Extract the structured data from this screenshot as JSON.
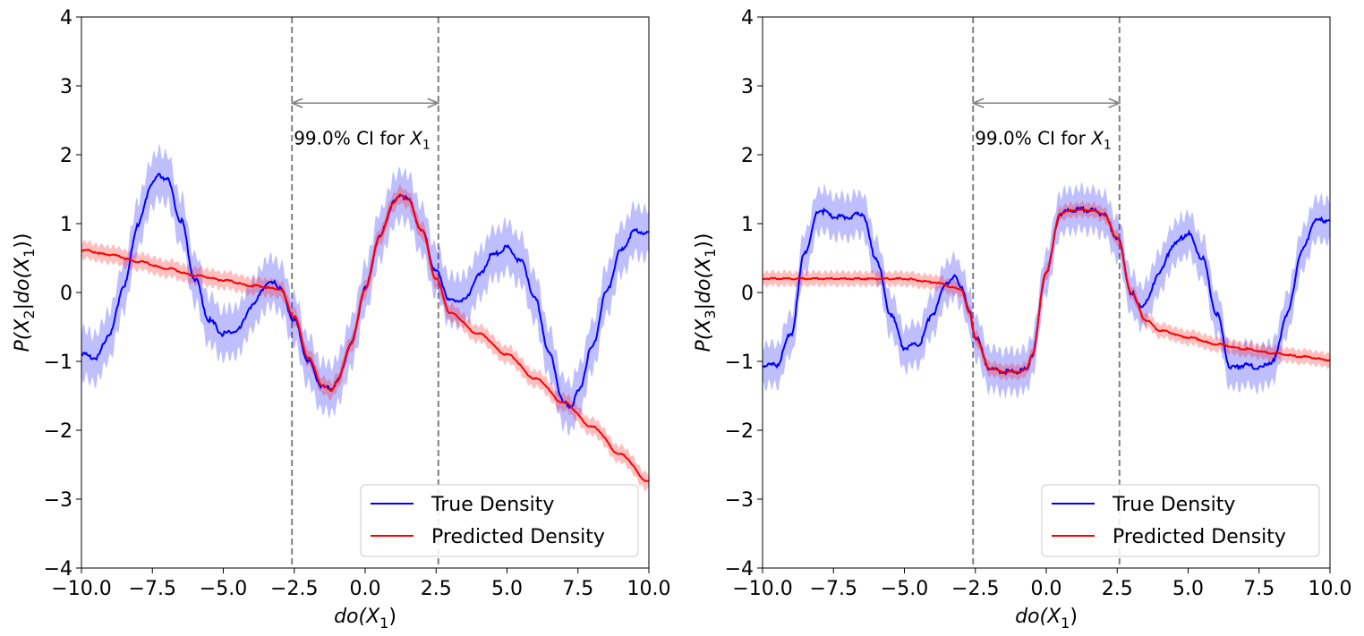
{
  "chart_data": [
    {
      "type": "line",
      "xlabel_base": "do(X",
      "xlabel_sub": "1",
      "xlabel_tail": ")",
      "ylabel_base": "P(X",
      "ylabel_sub": "2",
      "ylabel_mid": "|do(X",
      "ylabel_sub2": "1",
      "ylabel_tail": "))",
      "xlim": [
        -10,
        10
      ],
      "ylim": [
        -4,
        4
      ],
      "xticks": [
        "−10.0",
        "−7.5",
        "−5.0",
        "−2.5",
        "0.0",
        "2.5",
        "5.0",
        "7.5",
        "10.0"
      ],
      "xtick_values": [
        -10,
        -7.5,
        -5,
        -2.5,
        0,
        2.5,
        5,
        7.5,
        10
      ],
      "yticks": [
        "−4",
        "−3",
        "−2",
        "−1",
        "0",
        "1",
        "2",
        "3",
        "4"
      ],
      "ytick_values": [
        -4,
        -3,
        -2,
        -1,
        0,
        1,
        2,
        3,
        4
      ],
      "ci": {
        "low": -2.58,
        "high": 2.58,
        "arrow_y": 2.75,
        "label": "99.0% CI for ",
        "label_var": "X",
        "label_sub": "1"
      },
      "legend": {
        "position": "lower-right",
        "entries": [
          "True Density",
          "Predicted Density"
        ]
      },
      "series": [
        {
          "name": "True Density",
          "color": "#0000ff",
          "band_halfwidth": 0.35,
          "x": [
            -10,
            -9.5,
            -9,
            -8.5,
            -8,
            -7.5,
            -7.25,
            -7,
            -6.5,
            -6,
            -5.5,
            -5,
            -4.5,
            -4,
            -3.5,
            -3.2,
            -3,
            -2.5,
            -2,
            -1.5,
            -1.2,
            -1,
            -0.5,
            0,
            0.5,
            1,
            1.25,
            1.5,
            2,
            2.5,
            3,
            3.5,
            4,
            4.5,
            5,
            5.5,
            6,
            6.5,
            7,
            7.25,
            7.5,
            8,
            8.5,
            9,
            9.5,
            10
          ],
          "values": [
            -0.9,
            -0.95,
            -0.6,
            0.1,
            1.0,
            1.6,
            1.7,
            1.65,
            1.05,
            0.2,
            -0.4,
            -0.6,
            -0.55,
            -0.2,
            0.1,
            0.17,
            0.05,
            -0.4,
            -1.0,
            -1.38,
            -1.4,
            -1.3,
            -0.75,
            0.05,
            0.8,
            1.3,
            1.42,
            1.35,
            0.9,
            0.3,
            -0.12,
            -0.1,
            0.25,
            0.55,
            0.65,
            0.45,
            -0.1,
            -0.9,
            -1.6,
            -1.65,
            -1.45,
            -0.8,
            0.0,
            0.6,
            0.9,
            0.85
          ]
        },
        {
          "name": "Predicted Density",
          "color": "#ff0000",
          "band_halfwidth": 0.12,
          "x": [
            -10,
            -9,
            -8,
            -7,
            -6,
            -5,
            -4,
            -3,
            -2.5,
            -2,
            -1.5,
            -1.2,
            -1,
            -0.5,
            0,
            0.5,
            1,
            1.25,
            1.5,
            2,
            2.5,
            3,
            4,
            5,
            6,
            7,
            8,
            9,
            10
          ],
          "values": [
            0.62,
            0.55,
            0.45,
            0.35,
            0.25,
            0.18,
            0.1,
            0.05,
            -0.35,
            -0.95,
            -1.35,
            -1.42,
            -1.3,
            -0.75,
            0.05,
            0.8,
            1.3,
            1.42,
            1.35,
            0.9,
            0.2,
            -0.3,
            -0.6,
            -0.9,
            -1.25,
            -1.6,
            -1.95,
            -2.35,
            -2.75
          ]
        }
      ]
    },
    {
      "type": "line",
      "xlabel_base": "do(X",
      "xlabel_sub": "1",
      "xlabel_tail": ")",
      "ylabel_base": "P(X",
      "ylabel_sub": "3",
      "ylabel_mid": "|do(X",
      "ylabel_sub2": "1",
      "ylabel_tail": "))",
      "xlim": [
        -10,
        10
      ],
      "ylim": [
        -4,
        4
      ],
      "xticks": [
        "−10.0",
        "−7.5",
        "−5.0",
        "−2.5",
        "0.0",
        "2.5",
        "5.0",
        "7.5",
        "10.0"
      ],
      "xtick_values": [
        -10,
        -7.5,
        -5,
        -2.5,
        0,
        2.5,
        5,
        7.5,
        10
      ],
      "yticks": [
        "−4",
        "−3",
        "−2",
        "−1",
        "0",
        "1",
        "2",
        "3",
        "4"
      ],
      "ytick_values": [
        -4,
        -3,
        -2,
        -1,
        0,
        1,
        2,
        3,
        4
      ],
      "ci": {
        "low": -2.58,
        "high": 2.58,
        "arrow_y": 2.75,
        "label": "99.0% CI for ",
        "label_var": "X",
        "label_sub": "1"
      },
      "legend": {
        "position": "lower-right",
        "entries": [
          "True Density",
          "Predicted Density"
        ]
      },
      "series": [
        {
          "name": "True Density",
          "color": "#0000ff",
          "band_halfwidth": 0.3,
          "x": [
            -10,
            -9.5,
            -9,
            -8.5,
            -8,
            -7.5,
            -7,
            -6.5,
            -6,
            -5.5,
            -5,
            -4.5,
            -4,
            -3.5,
            -3.2,
            -3,
            -2.7,
            -2.5,
            -2,
            -1.5,
            -1,
            -0.7,
            -0.5,
            0,
            0.5,
            1,
            1.5,
            2,
            2.5,
            3,
            3.3,
            3.5,
            4,
            4.5,
            5,
            5.5,
            6,
            6.5,
            7,
            7.5,
            8,
            8.5,
            9,
            9.5,
            10
          ],
          "values": [
            -1.05,
            -1.05,
            -0.6,
            0.6,
            1.2,
            1.1,
            1.1,
            1.15,
            0.5,
            -0.3,
            -0.8,
            -0.75,
            -0.3,
            0.15,
            0.22,
            0.1,
            -0.3,
            -0.65,
            -1.1,
            -1.15,
            -1.15,
            -1.12,
            -0.9,
            0.3,
            1.15,
            1.2,
            1.2,
            1.15,
            0.8,
            0.0,
            -0.2,
            -0.15,
            0.3,
            0.7,
            0.85,
            0.5,
            -0.3,
            -1.1,
            -1.05,
            -1.1,
            -1.0,
            -0.3,
            0.6,
            1.05,
            1.05
          ]
        },
        {
          "name": "Predicted Density",
          "color": "#ff0000",
          "band_halfwidth": 0.1,
          "x": [
            -10,
            -9,
            -8,
            -7,
            -6,
            -5,
            -4,
            -3,
            -2.7,
            -2.5,
            -2,
            -1.5,
            -1,
            -0.7,
            -0.5,
            0,
            0.5,
            1,
            1.5,
            2,
            2.5,
            3,
            3.5,
            4,
            5,
            6,
            7,
            8,
            9,
            10
          ],
          "values": [
            0.2,
            0.2,
            0.2,
            0.2,
            0.2,
            0.2,
            0.15,
            0.05,
            -0.3,
            -0.65,
            -1.1,
            -1.15,
            -1.15,
            -1.12,
            -0.9,
            0.3,
            1.15,
            1.2,
            1.2,
            1.15,
            0.8,
            0.0,
            -0.4,
            -0.55,
            -0.65,
            -0.75,
            -0.82,
            -0.88,
            -0.93,
            -0.98
          ]
        }
      ]
    }
  ]
}
